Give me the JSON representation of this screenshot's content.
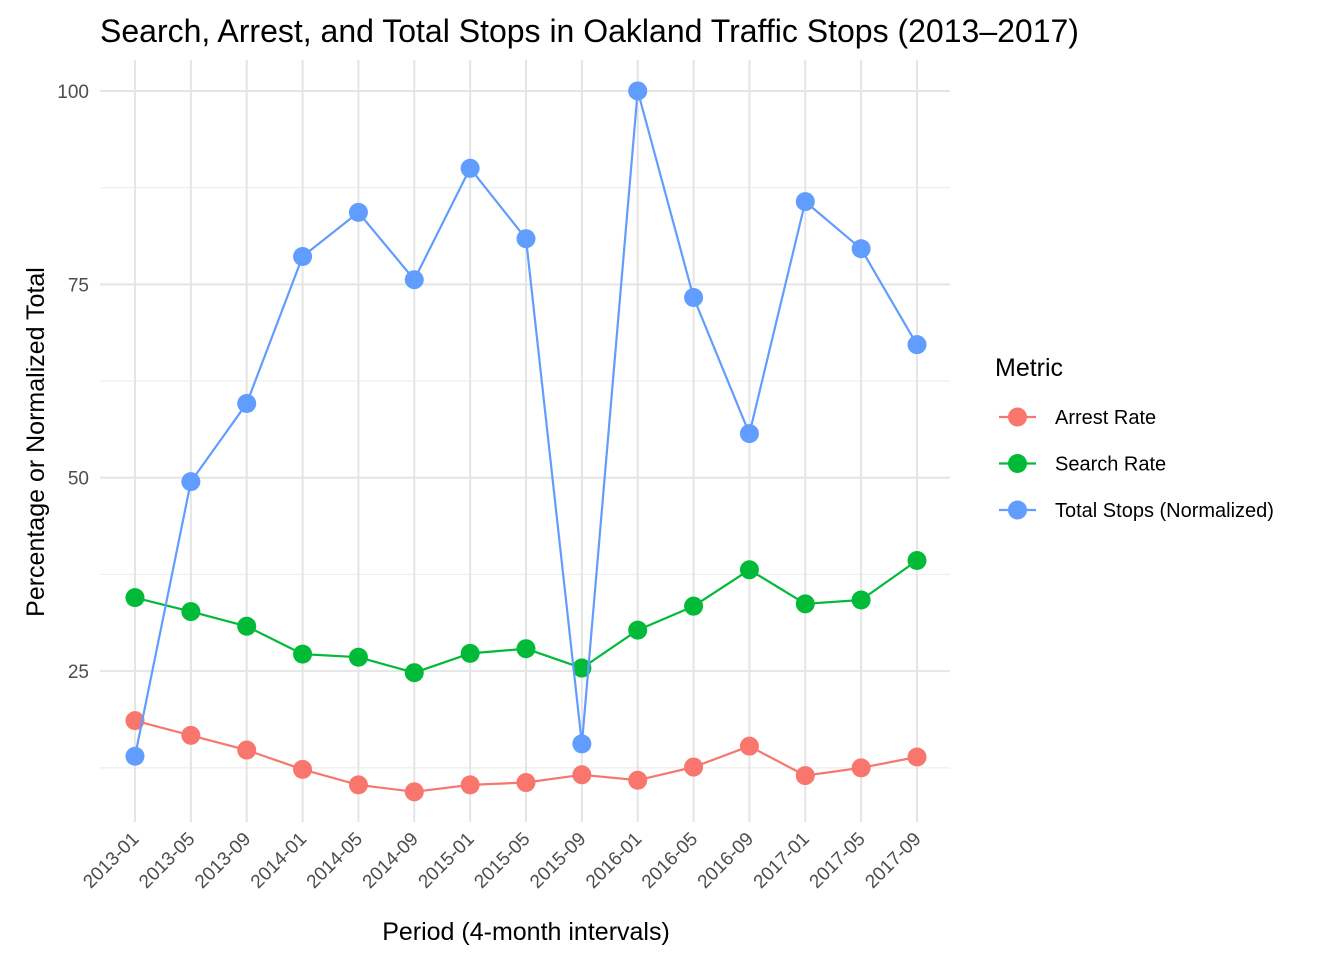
{
  "chart_data": {
    "type": "line",
    "title": "Search, Arrest, and Total Stops in Oakland Traffic Stops (2013–2017)",
    "xlabel": "Period (4-month intervals)",
    "ylabel": "Percentage or Normalized Total",
    "categories": [
      "2013-01",
      "2013-05",
      "2013-09",
      "2014-01",
      "2014-05",
      "2014-09",
      "2015-01",
      "2015-05",
      "2015-09",
      "2016-01",
      "2016-05",
      "2016-09",
      "2017-01",
      "2017-05",
      "2017-09"
    ],
    "ylim": [
      5.5,
      104
    ],
    "y_ticks": [
      25,
      50,
      75,
      100
    ],
    "y_tick_labels": [
      "25",
      "50",
      "75",
      "100"
    ],
    "grid": true,
    "legend_title": "Metric",
    "legend_position": "right",
    "series": [
      {
        "name": "Arrest Rate",
        "color": "#F8766D",
        "values": [
          18.6,
          16.7,
          14.8,
          12.3,
          10.3,
          9.4,
          10.3,
          10.6,
          11.6,
          10.9,
          12.6,
          15.3,
          11.5,
          12.5,
          13.9
        ]
      },
      {
        "name": "Search Rate",
        "color": "#00BA38",
        "values": [
          34.5,
          32.7,
          30.8,
          27.2,
          26.8,
          24.8,
          27.3,
          27.9,
          25.4,
          30.3,
          33.4,
          38.1,
          33.7,
          34.2,
          39.3
        ]
      },
      {
        "name": "Total Stops (Normalized)",
        "color": "#619CFF",
        "values": [
          14.0,
          49.5,
          59.6,
          78.6,
          84.3,
          75.6,
          90.0,
          80.9,
          15.6,
          100.0,
          73.3,
          55.7,
          85.7,
          79.6,
          67.2
        ]
      }
    ]
  }
}
